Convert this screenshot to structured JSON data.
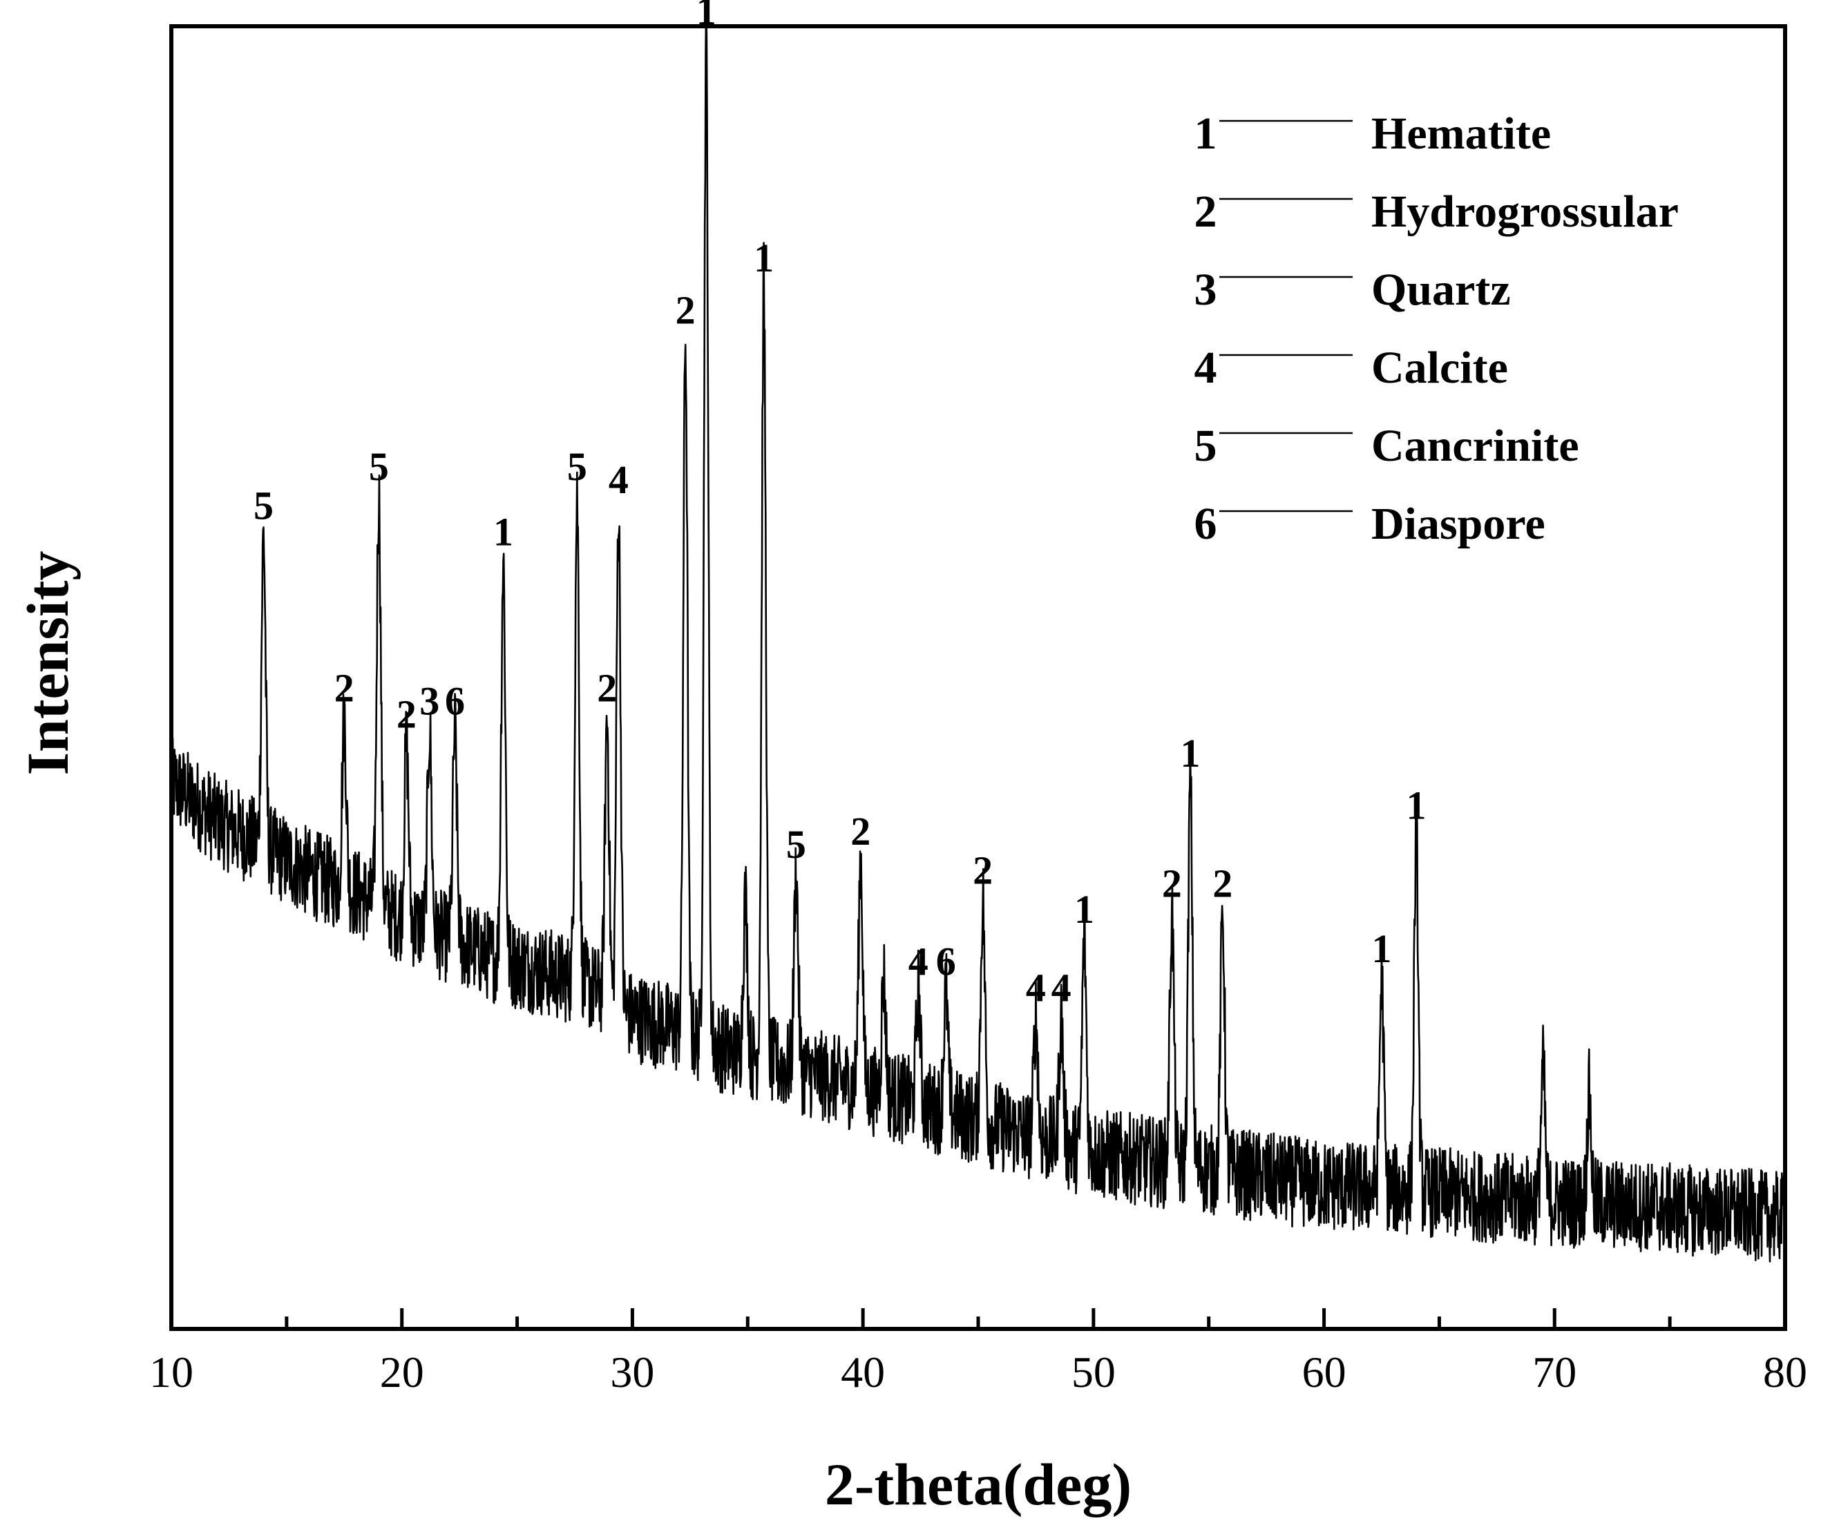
{
  "chart_data": {
    "type": "line",
    "title": "",
    "xlabel": "2-theta(deg)",
    "ylabel": "Intensity",
    "xlim": [
      10,
      80
    ],
    "ylim": [
      0,
      100
    ],
    "x_ticks": [
      10,
      20,
      30,
      40,
      50,
      60,
      70,
      80
    ],
    "x_tick_labels": [
      "10",
      "20",
      "30",
      "40",
      "50",
      "60",
      "70",
      "80"
    ],
    "y_ticks_shown": false,
    "grid": false,
    "line_color": "#000000",
    "background": {
      "x": [
        10,
        12,
        14,
        16,
        18,
        20,
        22,
        24,
        26,
        28,
        30,
        32,
        34,
        36,
        38,
        40,
        42,
        44,
        46,
        48,
        50,
        52,
        54,
        56,
        58,
        60,
        62,
        64,
        66,
        68,
        70,
        72,
        74,
        76,
        78,
        80
      ],
      "y": [
        42,
        39,
        37,
        35,
        33.5,
        31.5,
        30,
        28.5,
        27.5,
        26.5,
        24,
        23,
        21.5,
        20.5,
        19.5,
        18.5,
        17.5,
        16.5,
        15.5,
        14.5,
        13.5,
        13,
        12.5,
        12,
        11.5,
        11,
        10.8,
        10.6,
        10.3,
        10,
        9.8,
        9.6,
        9.4,
        9.1,
        8.9,
        8.5
      ]
    },
    "noise_amplitude": 3.5,
    "peaks": [
      {
        "x": 14.0,
        "y": 61,
        "label": "5"
      },
      {
        "x": 17.5,
        "y": 47,
        "label": "2"
      },
      {
        "x": 19.0,
        "y": 64,
        "label": "5"
      },
      {
        "x": 20.2,
        "y": 45,
        "label": "2"
      },
      {
        "x": 21.2,
        "y": 46,
        "label": "3"
      },
      {
        "x": 22.3,
        "y": 46,
        "label": "6"
      },
      {
        "x": 24.4,
        "y": 59,
        "label": "1"
      },
      {
        "x": 27.6,
        "y": 64,
        "label": "5"
      },
      {
        "x": 28.9,
        "y": 47,
        "label": "2"
      },
      {
        "x": 29.4,
        "y": 63,
        "label": "4"
      },
      {
        "x": 32.3,
        "y": 76,
        "label": "2"
      },
      {
        "x": 33.2,
        "y": 99,
        "label": "1"
      },
      {
        "x": 35.7,
        "y": 80,
        "label": "1"
      },
      {
        "x": 37.1,
        "y": 35,
        "label": "5"
      },
      {
        "x": 39.9,
        "y": 36,
        "label": "2"
      },
      {
        "x": 42.4,
        "y": 26,
        "label": "4"
      },
      {
        "x": 43.6,
        "y": 26,
        "label": "6"
      },
      {
        "x": 45.2,
        "y": 33,
        "label": "2"
      },
      {
        "x": 47.5,
        "y": 24,
        "label": "4"
      },
      {
        "x": 48.6,
        "y": 24,
        "label": "4"
      },
      {
        "x": 49.6,
        "y": 30,
        "label": "1"
      },
      {
        "x": 53.4,
        "y": 32,
        "label": "2"
      },
      {
        "x": 54.2,
        "y": 42,
        "label": "1"
      },
      {
        "x": 55.6,
        "y": 32,
        "label": "2"
      },
      {
        "x": 62.5,
        "y": 27,
        "label": "1"
      },
      {
        "x": 64.0,
        "y": 38,
        "label": "1"
      }
    ],
    "unlabeled_bumps": [
      {
        "x": 34.9,
        "y": 33
      },
      {
        "x": 40.9,
        "y": 27
      },
      {
        "x": 69.5,
        "y": 20
      },
      {
        "x": 71.5,
        "y": 18
      }
    ],
    "legend": {
      "position": "top-right",
      "entries": [
        {
          "symbol": "1",
          "name": "Hematite"
        },
        {
          "symbol": "2",
          "name": "Hydrogrossular"
        },
        {
          "symbol": "3",
          "name": "Quartz"
        },
        {
          "symbol": "4",
          "name": "Calcite"
        },
        {
          "symbol": "5",
          "name": "Cancrinite"
        },
        {
          "symbol": "6",
          "name": "Diaspore"
        }
      ]
    }
  }
}
